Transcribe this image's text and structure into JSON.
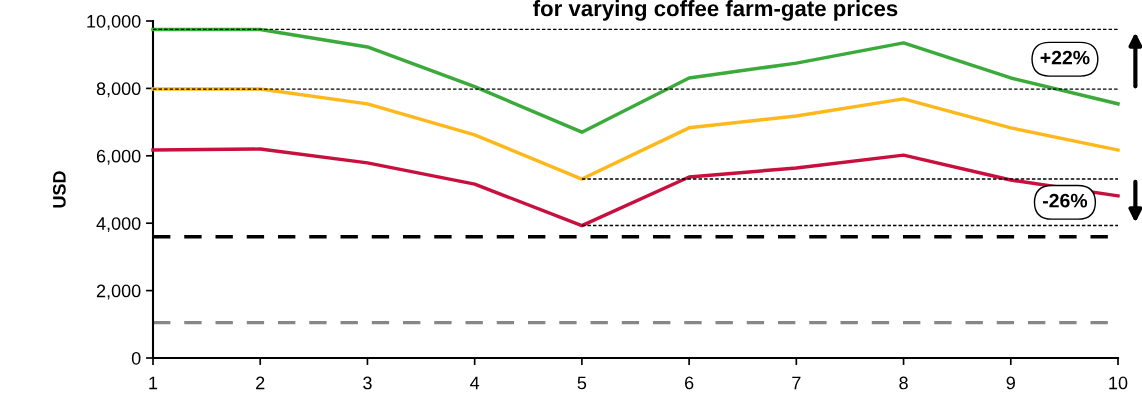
{
  "chart_data": {
    "type": "line",
    "title": "for varying coffee farm-gate prices",
    "ylabel": "USD",
    "x": [
      1,
      2,
      3,
      4,
      5,
      6,
      7,
      8,
      9,
      10
    ],
    "series": [
      {
        "color": "#3aaa3a",
        "values": [
          9750,
          9750,
          9230,
          8050,
          6700,
          8310,
          8750,
          9350,
          8310,
          7540
        ]
      },
      {
        "color": "#ffb81c",
        "values": [
          7980,
          7980,
          7540,
          6620,
          5310,
          6830,
          7180,
          7690,
          6830,
          6170
        ]
      },
      {
        "color": "#c8103e",
        "values": [
          6170,
          6200,
          5790,
          5160,
          3930,
          5370,
          5640,
          6020,
          5280,
          4810
        ]
      },
      {
        "color": "#000000",
        "line_style": "dotted",
        "x": [
          1,
          10
        ],
        "values": [
          7980,
          7980
        ]
      },
      {
        "color": "#000000",
        "line_style": "dotted",
        "x": [
          1,
          10
        ],
        "values": [
          9750,
          9750
        ]
      },
      {
        "color": "#000000",
        "line_style": "dotted",
        "x": [
          5,
          10
        ],
        "values": [
          5310,
          5310
        ]
      },
      {
        "color": "#000000",
        "line_style": "dotted",
        "x": [
          5,
          10
        ],
        "values": [
          3930,
          3930
        ]
      }
    ],
    "ref_lines": [
      {
        "axis": "y",
        "value": 3600,
        "color": "#000000",
        "line_style": "dashed"
      },
      {
        "axis": "y",
        "value": 1050,
        "color": "#878787",
        "line_style": "dashed"
      }
    ],
    "annotations": [
      "+22%",
      "-26%"
    ],
    "xlim": [
      1,
      10
    ],
    "xticks": [
      1,
      2,
      3,
      4,
      5,
      6,
      7,
      8,
      9,
      10
    ],
    "ylim": [
      0,
      10000
    ],
    "yticks": [
      {
        "value": 0,
        "label": "0"
      },
      {
        "value": 2000,
        "label": "2,000"
      },
      {
        "value": 4000,
        "label": "4,000"
      },
      {
        "value": 6000,
        "label": "6,000"
      },
      {
        "value": 8000,
        "label": "8,000"
      },
      {
        "value": 10000,
        "label": "10,000"
      }
    ],
    "grid": false,
    "legend": false,
    "marker": "none",
    "line_style": "solid"
  }
}
